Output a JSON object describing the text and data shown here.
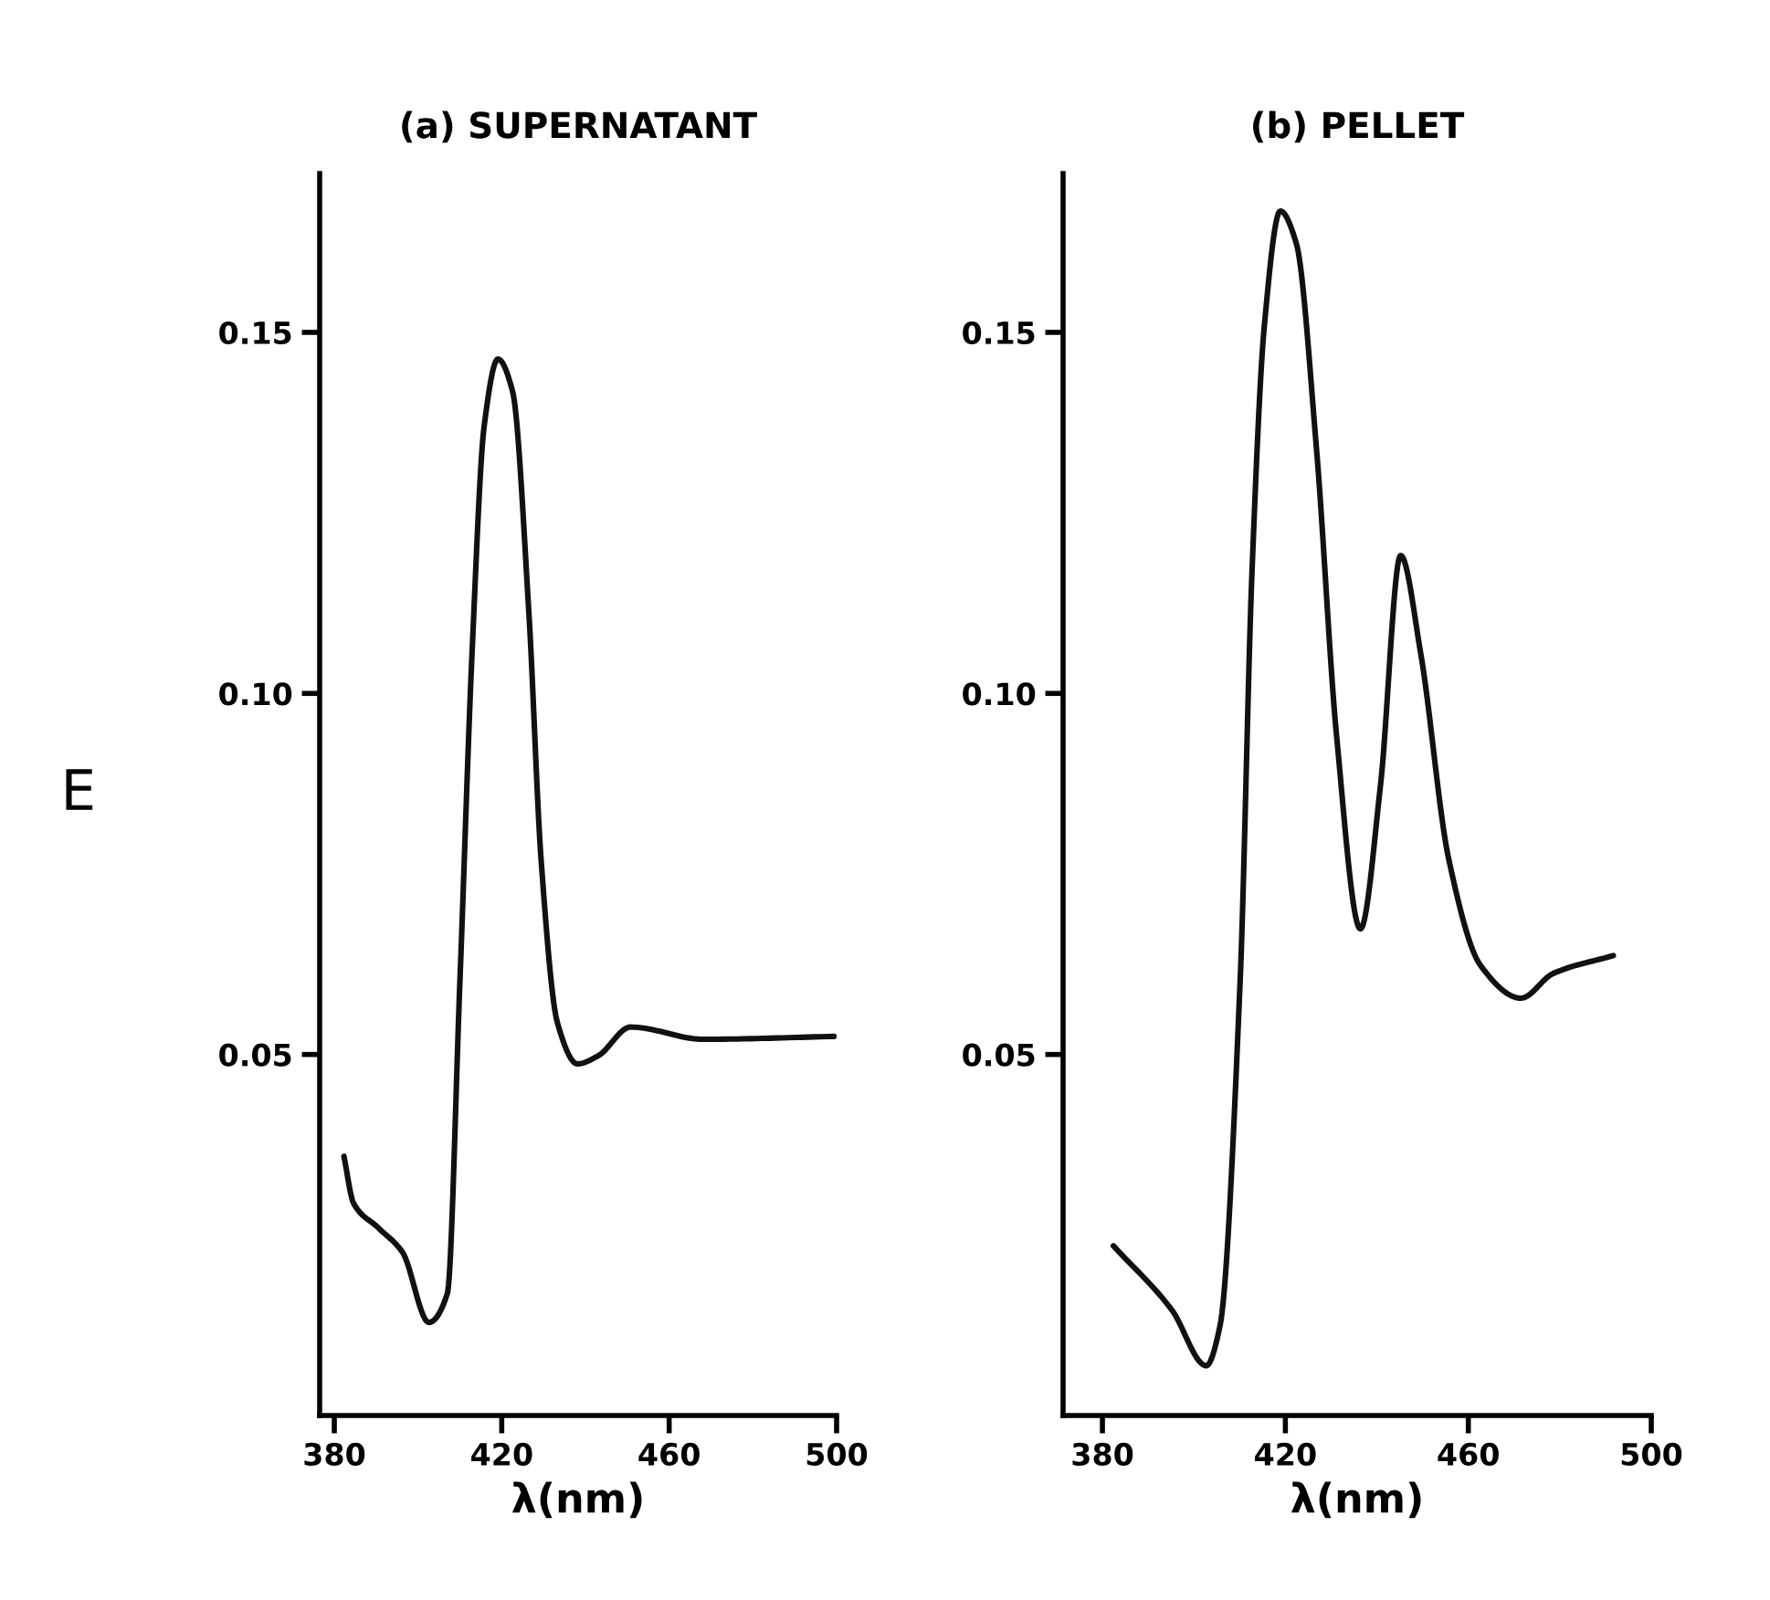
{
  "chart_data": [
    {
      "type": "line",
      "title": "(a) SUPERNATANT",
      "xlabel": "λ(nm)",
      "ylabel": "E",
      "xlim": [
        376.5,
        500
      ],
      "xticks": [
        380,
        420,
        460,
        500
      ],
      "ylim": [
        0,
        0.172
      ],
      "yticks": [
        {
          "value": 0.05,
          "label": "0.05"
        },
        {
          "value": 0.1,
          "label": "0.10"
        },
        {
          "value": 0.15,
          "label": "0.15"
        }
      ],
      "grid": false,
      "marker": "none",
      "line_style": "solid",
      "series": [
        {
          "color": "#111111",
          "x": [
            382.3,
            384.6,
            390.5,
            396.3,
            402.6,
            407.0,
            410.0,
            412.9,
            415.8,
            419.1,
            422.6,
            426.5,
            429.4,
            433.3,
            438.1,
            443.0,
            450.8,
            468.3,
            499.4
          ],
          "values": [
            0.0359,
            0.0294,
            0.026,
            0.0226,
            0.0129,
            0.0169,
            0.06,
            0.1055,
            0.137,
            0.1463,
            0.1418,
            0.111,
            0.077,
            0.0544,
            0.0487,
            0.0498,
            0.0538,
            0.0521,
            0.0525
          ]
        }
      ]
    },
    {
      "type": "line",
      "title": "(b) PELLET",
      "xlabel": "λ(nm)",
      "xlim": [
        371.4,
        500
      ],
      "xticks": [
        380,
        420,
        460,
        500
      ],
      "ylim": [
        0,
        0.172
      ],
      "yticks": [
        {
          "value": 0.05,
          "label": "0.05"
        },
        {
          "value": 0.1,
          "label": "0.10"
        },
        {
          "value": 0.15,
          "label": "0.15"
        }
      ],
      "grid": false,
      "marker": "none",
      "line_style": "solid",
      "series": [
        {
          "color": "#111111",
          "x": [
            382.4,
            395.2,
            402.7,
            405.7,
            410.1,
            412.7,
            415.4,
            418.9,
            422.4,
            426.8,
            431.2,
            436.4,
            440.8,
            445.2,
            449.6,
            455.7,
            462.7,
            471.5,
            478.5,
            491.7
          ],
          "values": [
            0.0235,
            0.0146,
            0.0069,
            0.0124,
            0.06,
            0.1168,
            0.1509,
            0.1668,
            0.1623,
            0.1339,
            0.0941,
            0.0674,
            0.0873,
            0.1191,
            0.1055,
            0.0771,
            0.0623,
            0.0578,
            0.0612,
            0.0637
          ]
        }
      ]
    }
  ]
}
